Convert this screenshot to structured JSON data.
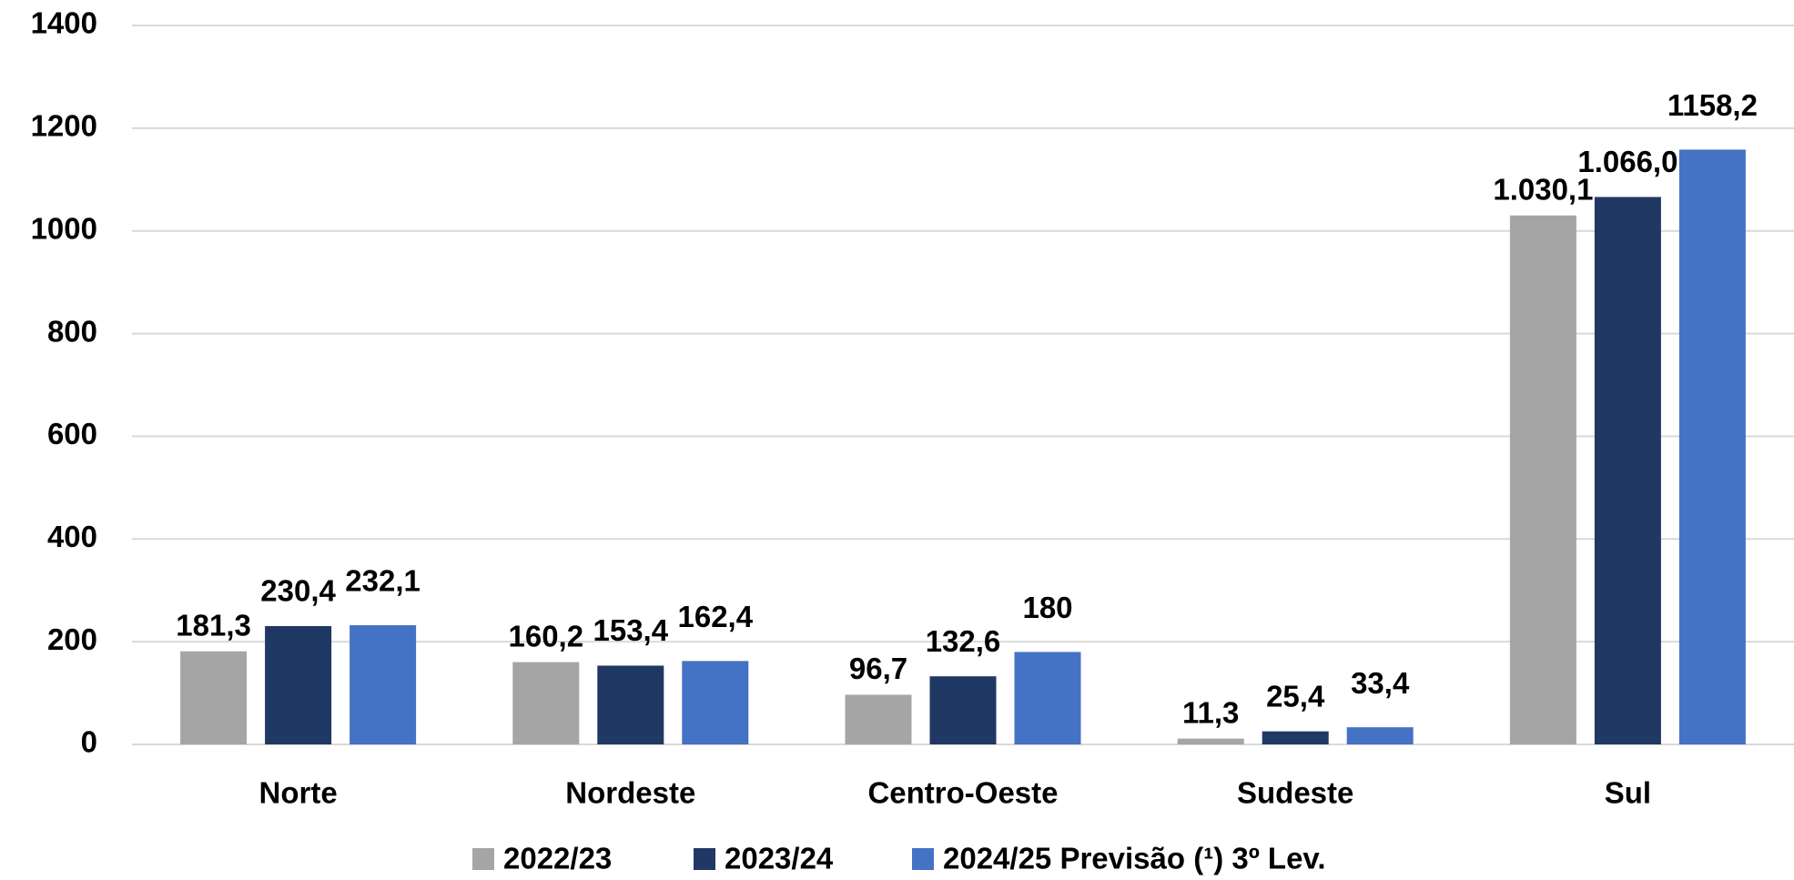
{
  "chart_data": {
    "type": "bar",
    "categories": [
      "Norte",
      "Nordeste",
      "Centro-Oeste",
      "Sudeste",
      "Sul"
    ],
    "series": [
      {
        "name": "2022/23",
        "color": "#a5a5a5",
        "values": [
          181.3,
          160.2,
          96.7,
          11.3,
          1030.1
        ],
        "value_labels": [
          "181,3",
          "160,2",
          "96,7",
          "11,3",
          "1.030,1"
        ]
      },
      {
        "name": "2023/24",
        "color": "#203864",
        "values": [
          230.4,
          153.4,
          132.6,
          25.4,
          1066.0
        ],
        "value_labels": [
          "230,4",
          "153,4",
          "132,6",
          "25,4",
          "1.066,0"
        ]
      },
      {
        "name": "2024/25 Previsão (¹) 3º Lev.",
        "color": "#4472c4",
        "values": [
          232.1,
          162.4,
          180,
          33.4,
          1158.2
        ],
        "value_labels": [
          "232,1",
          "162,4",
          "180",
          "33,4",
          "1158,2"
        ]
      }
    ],
    "ylim": [
      0,
      1400
    ],
    "yticks": [
      0,
      200,
      400,
      600,
      800,
      1000,
      1200,
      1400
    ],
    "grid": true,
    "legend": "bottom"
  }
}
